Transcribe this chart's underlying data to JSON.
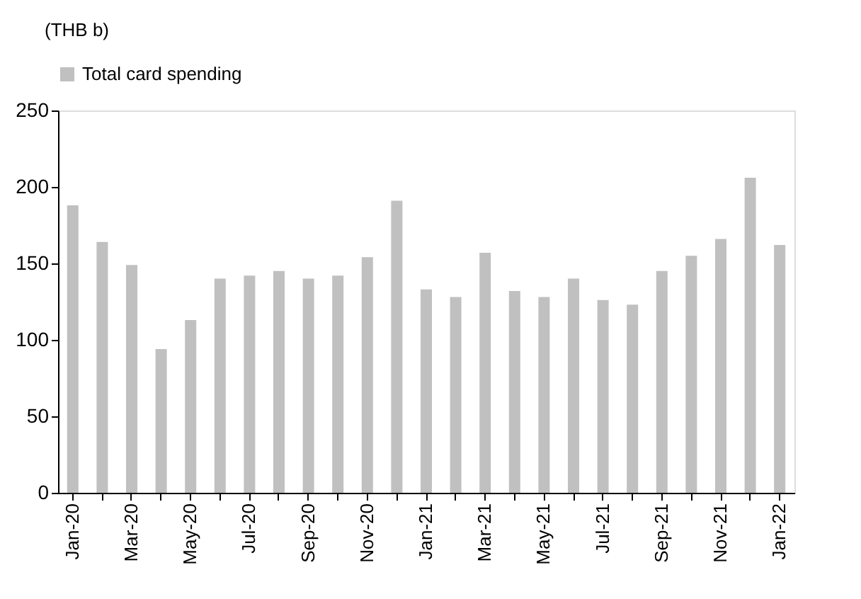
{
  "chart_data": {
    "type": "bar",
    "ylabel": "(THB b)",
    "categories": [
      "Jan-20",
      null,
      "Mar-20",
      null,
      "May-20",
      null,
      "Jul-20",
      null,
      "Sep-20",
      null,
      "Nov-20",
      null,
      "Jan-21",
      null,
      "Mar-21",
      null,
      "May-21",
      null,
      "Jul-21",
      null,
      "Sep-21",
      null,
      "Nov-21",
      null,
      "Jan-22"
    ],
    "series": [
      {
        "name": "Total card spending",
        "color": "#c0c0c0",
        "values": [
          188,
          164,
          149,
          94,
          113,
          140,
          142,
          145,
          140,
          142,
          154,
          191,
          133,
          128,
          157,
          132,
          128,
          140,
          126,
          123,
          145,
          155,
          166,
          206,
          162
        ]
      }
    ],
    "ylim": [
      0,
      250
    ],
    "yticks": [
      0,
      50,
      100,
      150,
      200,
      250
    ],
    "grid": false,
    "legend": "top"
  }
}
